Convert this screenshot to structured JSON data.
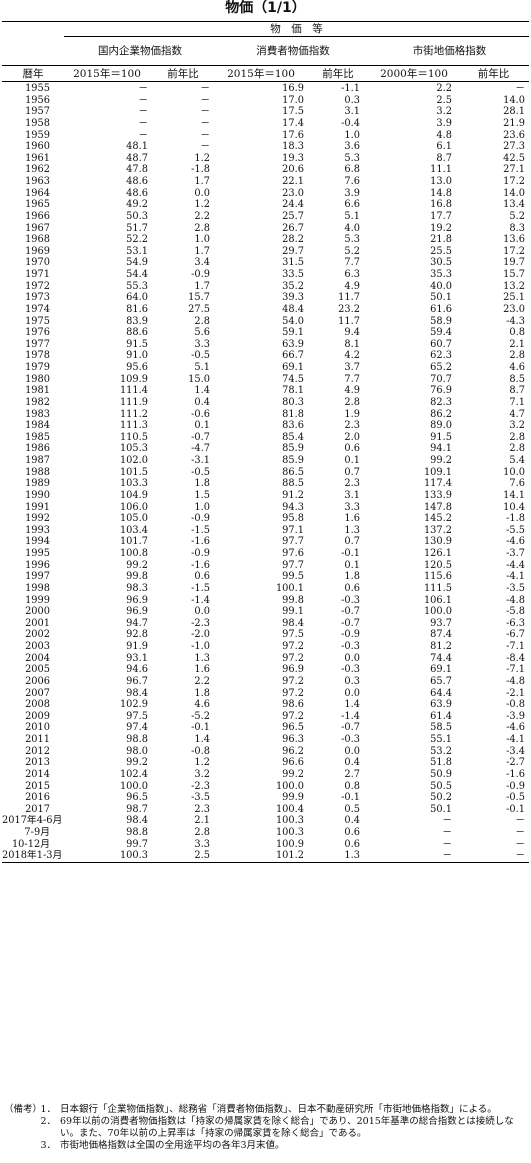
{
  "title": "物価（1/1）",
  "header": {
    "group": "物　価　等",
    "wpi": "国内企業物価指数",
    "cpi": "消費者物価指数",
    "land": "市街地価格指数",
    "year": "暦年",
    "base_2015": "2015年＝100",
    "base_2015_b": "2015年＝100",
    "base_2000": "2000年＝100",
    "yoy1": "前年比",
    "yoy2": "前年比",
    "yoy3": "前年比"
  },
  "rows": [
    [
      "1955",
      "－",
      "－",
      "16.9",
      "-1.1",
      "2.2",
      "－"
    ],
    [
      "1956",
      "－",
      "－",
      "17.0",
      "0.3",
      "2.5",
      "14.0"
    ],
    [
      "1957",
      "－",
      "－",
      "17.5",
      "3.1",
      "3.2",
      "28.1"
    ],
    [
      "1958",
      "－",
      "－",
      "17.4",
      "-0.4",
      "3.9",
      "21.9"
    ],
    [
      "1959",
      "－",
      "－",
      "17.6",
      "1.0",
      "4.8",
      "23.6"
    ],
    [
      "1960",
      "48.1",
      "－",
      "18.3",
      "3.6",
      "6.1",
      "27.3"
    ],
    [
      "1961",
      "48.7",
      "1.2",
      "19.3",
      "5.3",
      "8.7",
      "42.5"
    ],
    [
      "1962",
      "47.8",
      "-1.8",
      "20.6",
      "6.8",
      "11.1",
      "27.1"
    ],
    [
      "1963",
      "48.6",
      "1.7",
      "22.1",
      "7.6",
      "13.0",
      "17.2"
    ],
    [
      "1964",
      "48.6",
      "0.0",
      "23.0",
      "3.9",
      "14.8",
      "14.0"
    ],
    [
      "1965",
      "49.2",
      "1.2",
      "24.4",
      "6.6",
      "16.8",
      "13.4"
    ],
    [
      "1966",
      "50.3",
      "2.2",
      "25.7",
      "5.1",
      "17.7",
      "5.2"
    ],
    [
      "1967",
      "51.7",
      "2.8",
      "26.7",
      "4.0",
      "19.2",
      "8.3"
    ],
    [
      "1968",
      "52.2",
      "1.0",
      "28.2",
      "5.3",
      "21.8",
      "13.6"
    ],
    [
      "1969",
      "53.1",
      "1.7",
      "29.7",
      "5.2",
      "25.5",
      "17.2"
    ],
    [
      "1970",
      "54.9",
      "3.4",
      "31.5",
      "7.7",
      "30.5",
      "19.7"
    ],
    [
      "1971",
      "54.4",
      "-0.9",
      "33.5",
      "6.3",
      "35.3",
      "15.7"
    ],
    [
      "1972",
      "55.3",
      "1.7",
      "35.2",
      "4.9",
      "40.0",
      "13.2"
    ],
    [
      "1973",
      "64.0",
      "15.7",
      "39.3",
      "11.7",
      "50.1",
      "25.1"
    ],
    [
      "1974",
      "81.6",
      "27.5",
      "48.4",
      "23.2",
      "61.6",
      "23.0"
    ],
    [
      "1975",
      "83.9",
      "2.8",
      "54.0",
      "11.7",
      "58.9",
      "-4.3"
    ],
    [
      "1976",
      "88.6",
      "5.6",
      "59.1",
      "9.4",
      "59.4",
      "0.8"
    ],
    [
      "1977",
      "91.5",
      "3.3",
      "63.9",
      "8.1",
      "60.7",
      "2.1"
    ],
    [
      "1978",
      "91.0",
      "-0.5",
      "66.7",
      "4.2",
      "62.3",
      "2.8"
    ],
    [
      "1979",
      "95.6",
      "5.1",
      "69.1",
      "3.7",
      "65.2",
      "4.6"
    ],
    [
      "1980",
      "109.9",
      "15.0",
      "74.5",
      "7.7",
      "70.7",
      "8.5"
    ],
    [
      "1981",
      "111.4",
      "1.4",
      "78.1",
      "4.9",
      "76.9",
      "8.7"
    ],
    [
      "1982",
      "111.9",
      "0.4",
      "80.3",
      "2.8",
      "82.3",
      "7.1"
    ],
    [
      "1983",
      "111.2",
      "-0.6",
      "81.8",
      "1.9",
      "86.2",
      "4.7"
    ],
    [
      "1984",
      "111.3",
      "0.1",
      "83.6",
      "2.3",
      "89.0",
      "3.2"
    ],
    [
      "1985",
      "110.5",
      "-0.7",
      "85.4",
      "2.0",
      "91.5",
      "2.8"
    ],
    [
      "1986",
      "105.3",
      "-4.7",
      "85.9",
      "0.6",
      "94.1",
      "2.8"
    ],
    [
      "1987",
      "102.0",
      "-3.1",
      "85.9",
      "0.1",
      "99.2",
      "5.4"
    ],
    [
      "1988",
      "101.5",
      "-0.5",
      "86.5",
      "0.7",
      "109.1",
      "10.0"
    ],
    [
      "1989",
      "103.3",
      "1.8",
      "88.5",
      "2.3",
      "117.4",
      "7.6"
    ],
    [
      "1990",
      "104.9",
      "1.5",
      "91.2",
      "3.1",
      "133.9",
      "14.1"
    ],
    [
      "1991",
      "106.0",
      "1.0",
      "94.3",
      "3.3",
      "147.8",
      "10.4"
    ],
    [
      "1992",
      "105.0",
      "-0.9",
      "95.8",
      "1.6",
      "145.2",
      "-1.8"
    ],
    [
      "1993",
      "103.4",
      "-1.5",
      "97.1",
      "1.3",
      "137.2",
      "-5.5"
    ],
    [
      "1994",
      "101.7",
      "-1.6",
      "97.7",
      "0.7",
      "130.9",
      "-4.6"
    ],
    [
      "1995",
      "100.8",
      "-0.9",
      "97.6",
      "-0.1",
      "126.1",
      "-3.7"
    ],
    [
      "1996",
      "99.2",
      "-1.6",
      "97.7",
      "0.1",
      "120.5",
      "-4.4"
    ],
    [
      "1997",
      "99.8",
      "0.6",
      "99.5",
      "1.8",
      "115.6",
      "-4.1"
    ],
    [
      "1998",
      "98.3",
      "-1.5",
      "100.1",
      "0.6",
      "111.5",
      "-3.5"
    ],
    [
      "1999",
      "96.9",
      "-1.4",
      "99.8",
      "-0.3",
      "106.1",
      "-4.8"
    ],
    [
      "2000",
      "96.9",
      "0.0",
      "99.1",
      "-0.7",
      "100.0",
      "-5.8"
    ],
    [
      "2001",
      "94.7",
      "-2.3",
      "98.4",
      "-0.7",
      "93.7",
      "-6.3"
    ],
    [
      "2002",
      "92.8",
      "-2.0",
      "97.5",
      "-0.9",
      "87.4",
      "-6.7"
    ],
    [
      "2003",
      "91.9",
      "-1.0",
      "97.2",
      "-0.3",
      "81.2",
      "-7.1"
    ],
    [
      "2004",
      "93.1",
      "1.3",
      "97.2",
      "0.0",
      "74.4",
      "-8.4"
    ],
    [
      "2005",
      "94.6",
      "1.6",
      "96.9",
      "-0.3",
      "69.1",
      "-7.1"
    ],
    [
      "2006",
      "96.7",
      "2.2",
      "97.2",
      "0.3",
      "65.7",
      "-4.8"
    ],
    [
      "2007",
      "98.4",
      "1.8",
      "97.2",
      "0.0",
      "64.4",
      "-2.1"
    ],
    [
      "2008",
      "102.9",
      "4.6",
      "98.6",
      "1.4",
      "63.9",
      "-0.8"
    ],
    [
      "2009",
      "97.5",
      "-5.2",
      "97.2",
      "-1.4",
      "61.4",
      "-3.9"
    ],
    [
      "2010",
      "97.4",
      "-0.1",
      "96.5",
      "-0.7",
      "58.5",
      "-4.6"
    ],
    [
      "2011",
      "98.8",
      "1.4",
      "96.3",
      "-0.3",
      "55.1",
      "-4.1"
    ],
    [
      "2012",
      "98.0",
      "-0.8",
      "96.2",
      "0.0",
      "53.2",
      "-3.4"
    ],
    [
      "2013",
      "99.2",
      "1.2",
      "96.6",
      "0.4",
      "51.8",
      "-2.7"
    ],
    [
      "2014",
      "102.4",
      "3.2",
      "99.2",
      "2.7",
      "50.9",
      "-1.6"
    ],
    [
      "2015",
      "100.0",
      "-2.3",
      "100.0",
      "0.8",
      "50.5",
      "-0.9"
    ],
    [
      "2016",
      "96.5",
      "-3.5",
      "99.9",
      "-0.1",
      "50.2",
      "-0.5"
    ],
    [
      "2017",
      "98.7",
      "2.3",
      "100.4",
      "0.5",
      "50.1",
      "-0.1"
    ],
    [
      "2017年4-6月",
      "98.4",
      "2.1",
      "100.3",
      "0.4",
      "－",
      "－"
    ],
    [
      "7-9月",
      "98.8",
      "2.8",
      "100.3",
      "0.6",
      "－",
      "－"
    ],
    [
      "10-12月",
      "99.7",
      "3.3",
      "100.9",
      "0.6",
      "－",
      "－"
    ],
    [
      "2018年1-3月",
      "100.3",
      "2.5",
      "101.2",
      "1.3",
      "－",
      "－"
    ]
  ],
  "notes": {
    "label": "（備考）",
    "items": [
      {
        "num": "1．",
        "text": "日本銀行「企業物価指数」、総務省「消費者物価指数」、日本不動産研究所「市街地価格指数」による。"
      },
      {
        "num": "2．",
        "text": "69年以前の消費者物価指数は「持家の帰属家賃を除く総合」であり、2015年基準の総合指数とは接続しない。また、70年以前の上昇率は「持家の帰属家賃を除く総合」である。"
      },
      {
        "num": "3．",
        "text": "市街地価格指数は全国の全用途平均の各年3月末値。"
      }
    ]
  }
}
